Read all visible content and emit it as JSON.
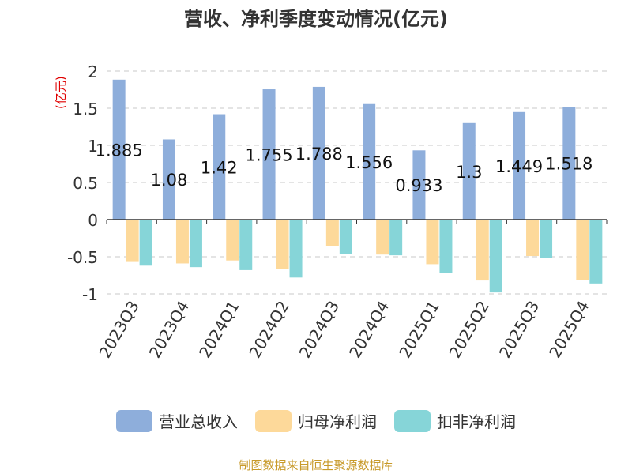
{
  "chart_data": {
    "type": "bar",
    "title": "营收、净利季度变动情况(亿元)",
    "unit_label": "(亿元)",
    "categories": [
      "2023Q3",
      "2023Q4",
      "2024Q1",
      "2024Q2",
      "2024Q3",
      "2024Q4",
      "2025Q1",
      "2025Q2",
      "2025Q3",
      "2025Q4"
    ],
    "series": [
      {
        "name": "营业总收入",
        "color": "#8eaedb",
        "values": [
          1.885,
          1.08,
          1.42,
          1.755,
          1.788,
          1.556,
          0.933,
          1.3,
          1.449,
          1.518
        ]
      },
      {
        "name": "归母净利润",
        "color": "#fdd99a",
        "values": [
          -0.57,
          -0.59,
          -0.55,
          -0.66,
          -0.36,
          -0.47,
          -0.6,
          -0.82,
          -0.49,
          -0.81
        ]
      },
      {
        "name": "扣非净利润",
        "color": "#86d5d8",
        "values": [
          -0.62,
          -0.64,
          -0.68,
          -0.78,
          -0.46,
          -0.48,
          -0.72,
          -0.98,
          -0.52,
          -0.86
        ]
      }
    ],
    "data_labels": [
      "1.885",
      "1.08",
      "1.42",
      "1.755",
      "1.788",
      "1.556",
      "0.933",
      "1.3",
      "1.449",
      "1.518"
    ],
    "ylim": [
      -1,
      2
    ],
    "yticks": [
      "2",
      "1.5",
      "1",
      "0.5",
      "0",
      "-0.5",
      "-1"
    ],
    "grid": true,
    "legend_position": "bottom"
  },
  "footer": "制图数据来自恒生聚源数据库"
}
